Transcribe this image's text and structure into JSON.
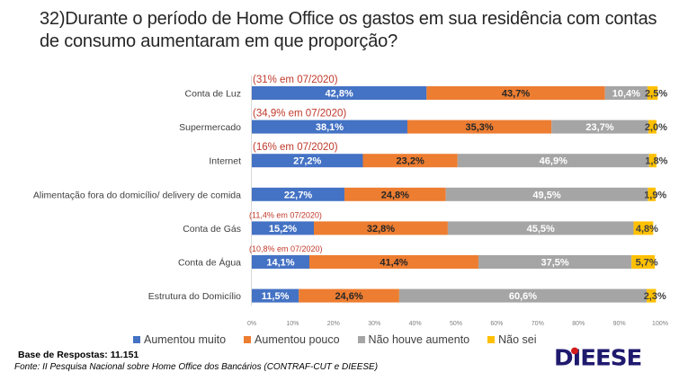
{
  "title": "32)Durante o período de Home Office os gastos em sua residência com contas de consumo aumentaram em que proporção?",
  "chart_data": {
    "type": "bar",
    "orientation": "horizontal",
    "stacked": "100%",
    "title": "32)Durante o período de Home Office os gastos em sua residência com contas de consumo aumentaram em que proporção?",
    "xlabel": "",
    "ylabel": "",
    "xlim": [
      0,
      100
    ],
    "x_ticks": [
      "0%",
      "10%",
      "20%",
      "30%",
      "40%",
      "50%",
      "60%",
      "70%",
      "80%",
      "90%",
      "100%"
    ],
    "grid": false,
    "legend_position": "bottom",
    "categories": [
      "Conta de Luz",
      "Supermercado",
      "Internet",
      "Alimentação fora do domicílio/ delivery de comida",
      "Conta de Gás",
      "Conta de Água",
      "Estrutura do Domicílio"
    ],
    "annotations": [
      "(31% em 07/2020)",
      "(34,9% em 07/2020)",
      "(16% em 07/2020)",
      "",
      "(11,4% em 07/2020)",
      "(10,8% em 07/2020)",
      ""
    ],
    "series": [
      {
        "name": "Aumentou muito",
        "color": "#4472c4",
        "label_color": "#ffffff",
        "values": [
          42.8,
          38.1,
          27.2,
          22.7,
          15.2,
          14.1,
          11.5
        ],
        "labels": [
          "42,8%",
          "38,1%",
          "27,2%",
          "22,7%",
          "15,2%",
          "14,1%",
          "11,5%"
        ]
      },
      {
        "name": "Aumentou pouco",
        "color": "#ed7d31",
        "label_color": "#262626",
        "values": [
          43.7,
          35.3,
          23.2,
          24.8,
          32.8,
          41.4,
          24.6
        ],
        "labels": [
          "43,7%",
          "35,3%",
          "23,2%",
          "24,8%",
          "32,8%",
          "41,4%",
          "24,6%"
        ]
      },
      {
        "name": "Não houve aumento",
        "color": "#a5a5a5",
        "label_color": "#ffffff",
        "values": [
          10.4,
          23.7,
          46.9,
          49.5,
          45.5,
          37.5,
          60.6
        ],
        "labels": [
          "10,4%",
          "23,7%",
          "46,9%",
          "49,5%",
          "45,5%",
          "37,5%",
          "60,6%"
        ]
      },
      {
        "name": "Não sei",
        "color": "#ffc000",
        "label_color": "#404040",
        "values": [
          2.5,
          2.0,
          1.8,
          1.9,
          4.8,
          5.7,
          2.3
        ],
        "labels": [
          "2,5%",
          "2,0%",
          "1,8%",
          "1,9%",
          "4,8%",
          "5,7%",
          "2,3%"
        ]
      }
    ]
  },
  "footer": {
    "base": "Base de Respostas: 11.151",
    "source": "Fonte: II Pesquisa Nacional sobre Home Office dos Bancários (CONTRAF-CUT e DIEESE)",
    "logo": "DIEESE"
  }
}
